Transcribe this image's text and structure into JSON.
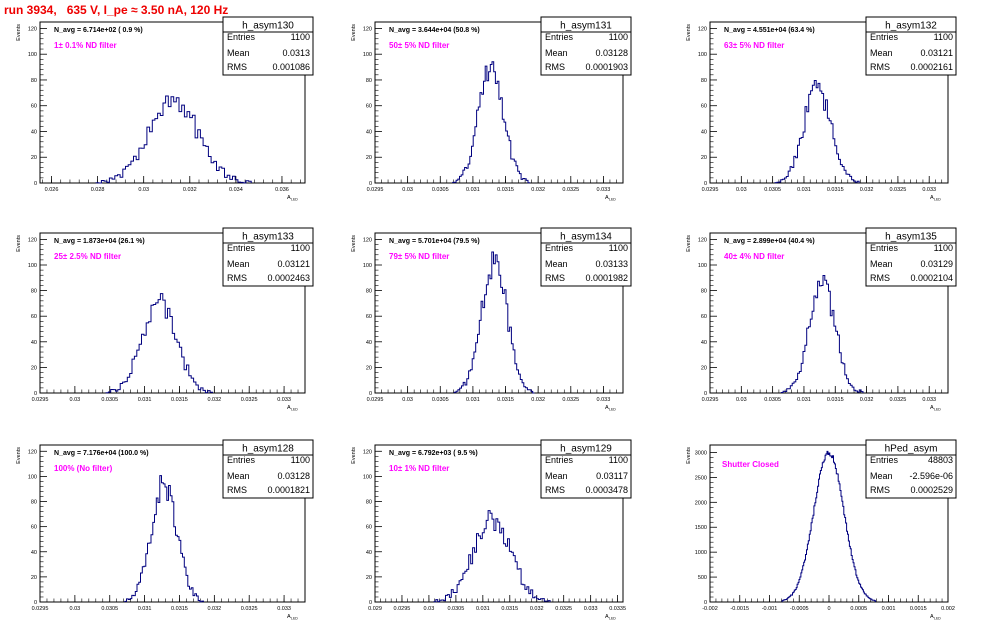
{
  "run_title": "run 3934,   635 V, I_pe ≈ 3.50 nA, 120 Hz",
  "colors": {
    "title": "#ee0000",
    "histogram": "#00007f",
    "annotation": "#ff00ff",
    "axis": "#000000"
  },
  "stats_labels": {
    "entries": "Entries",
    "mean": "Mean",
    "rms": "RMS"
  },
  "axis_y_label": "Events",
  "axis_x_label": "A",
  "axis_x_label_sub": "LED",
  "chart_data": [
    {
      "type": "histogram",
      "name": "h_asym130",
      "navg": "N_avg = 6.714e+02 ( 0.9 %)",
      "filter": "1± 0.1% ND filter",
      "stats": {
        "entries": "1100",
        "mean": "0.0313",
        "rms": "0.001086"
      },
      "xlim": [
        0.0255,
        0.037
      ],
      "xticks": [
        0.026,
        0.028,
        0.03,
        0.032,
        0.034,
        0.036
      ],
      "xtick_labels": [
        "0.026",
        "0.028",
        "0.03",
        "0.032",
        "0.034",
        "0.036"
      ],
      "ylim": [
        0,
        125
      ],
      "yticks": [
        0,
        20,
        40,
        60,
        80,
        100,
        120
      ],
      "ytick_labels": [
        "0",
        "20",
        "40",
        "60",
        "80",
        "100",
        "120"
      ],
      "mean": 0.0313,
      "rms": 0.001086,
      "peak": 63,
      "bins": 58,
      "seed": 130
    },
    {
      "type": "histogram",
      "name": "h_asym131",
      "navg": "N_avg = 3.644e+04 (50.8 %)",
      "filter": "50± 5% ND filter",
      "stats": {
        "entries": "1100",
        "mean": "0.03128",
        "rms": "0.0001903"
      },
      "xlim": [
        0.0295,
        0.0333
      ],
      "xticks": [
        0.0295,
        0.03,
        0.0305,
        0.031,
        0.0315,
        0.032,
        0.0325,
        0.033
      ],
      "xtick_labels": [
        "0.0295",
        "0.03",
        "0.0305",
        "0.031",
        "0.0315",
        "0.032",
        "0.0325",
        "0.033"
      ],
      "ylim": [
        0,
        125
      ],
      "yticks": [
        0,
        20,
        40,
        60,
        80,
        100,
        120
      ],
      "ytick_labels": [
        "0",
        "20",
        "40",
        "60",
        "80",
        "100",
        "120"
      ],
      "mean": 0.03128,
      "rms": 0.0001903,
      "peak": 92,
      "bins": 45,
      "seed": 131
    },
    {
      "type": "histogram",
      "name": "h_asym132",
      "navg": "N_avg = 4.551e+04 (63.4 %)",
      "filter": "63± 5% ND filter",
      "stats": {
        "entries": "1100",
        "mean": "0.03121",
        "rms": "0.0002161"
      },
      "xlim": [
        0.0295,
        0.0333
      ],
      "xticks": [
        0.0295,
        0.03,
        0.0305,
        0.031,
        0.0315,
        0.032,
        0.0325,
        0.033
      ],
      "xtick_labels": [
        "0.0295",
        "0.03",
        "0.0305",
        "0.031",
        "0.0315",
        "0.032",
        "0.0325",
        "0.033"
      ],
      "ylim": [
        0,
        125
      ],
      "yticks": [
        0,
        20,
        40,
        60,
        80,
        100,
        120
      ],
      "ytick_labels": [
        "0",
        "20",
        "40",
        "60",
        "80",
        "100",
        "120"
      ],
      "mean": 0.03121,
      "rms": 0.0002161,
      "peak": 74,
      "bins": 45,
      "seed": 132
    },
    {
      "type": "histogram",
      "name": "h_asym133",
      "navg": "N_avg = 1.873e+04 (26.1 %)",
      "filter": "25± 2.5% ND filter",
      "stats": {
        "entries": "1100",
        "mean": "0.03121",
        "rms": "0.0002463"
      },
      "xlim": [
        0.0295,
        0.0333
      ],
      "xticks": [
        0.0295,
        0.03,
        0.0305,
        0.031,
        0.0315,
        0.032,
        0.0325,
        0.033
      ],
      "xtick_labels": [
        "0.0295",
        "0.03",
        "0.0305",
        "0.031",
        "0.0315",
        "0.032",
        "0.0325",
        "0.033"
      ],
      "ylim": [
        0,
        125
      ],
      "yticks": [
        0,
        20,
        40,
        60,
        80,
        100,
        120
      ],
      "ytick_labels": [
        "0",
        "20",
        "40",
        "60",
        "80",
        "100",
        "120"
      ],
      "mean": 0.03121,
      "rms": 0.0002463,
      "peak": 73,
      "bins": 45,
      "seed": 133
    },
    {
      "type": "histogram",
      "name": "h_asym134",
      "navg": "N_avg = 5.701e+04 (79.5 %)",
      "filter": "79± 5% ND filter",
      "stats": {
        "entries": "1100",
        "mean": "0.03133",
        "rms": "0.0001982"
      },
      "xlim": [
        0.0295,
        0.0333
      ],
      "xticks": [
        0.0295,
        0.03,
        0.0305,
        0.031,
        0.0315,
        0.032,
        0.0325,
        0.033
      ],
      "xtick_labels": [
        "0.0295",
        "0.03",
        "0.0305",
        "0.031",
        "0.0315",
        "0.032",
        "0.0325",
        "0.033"
      ],
      "ylim": [
        0,
        125
      ],
      "yticks": [
        0,
        20,
        40,
        60,
        80,
        100,
        120
      ],
      "ytick_labels": [
        "0",
        "20",
        "40",
        "60",
        "80",
        "100",
        "120"
      ],
      "mean": 0.03133,
      "rms": 0.0001982,
      "peak": 101,
      "bins": 45,
      "seed": 134
    },
    {
      "type": "histogram",
      "name": "h_asym135",
      "navg": "N_avg = 2.899e+04 (40.4 %)",
      "filter": "40± 4% ND filter",
      "stats": {
        "entries": "1100",
        "mean": "0.03129",
        "rms": "0.0002104"
      },
      "xlim": [
        0.0295,
        0.0333
      ],
      "xticks": [
        0.0295,
        0.03,
        0.0305,
        0.031,
        0.0315,
        0.032,
        0.0325,
        0.033
      ],
      "xtick_labels": [
        "0.0295",
        "0.03",
        "0.0305",
        "0.031",
        "0.0315",
        "0.032",
        "0.0325",
        "0.033"
      ],
      "ylim": [
        0,
        125
      ],
      "yticks": [
        0,
        20,
        40,
        60,
        80,
        100,
        120
      ],
      "ytick_labels": [
        "0",
        "20",
        "40",
        "60",
        "80",
        "100",
        "120"
      ],
      "mean": 0.03129,
      "rms": 0.0002104,
      "peak": 84,
      "bins": 45,
      "seed": 135
    },
    {
      "type": "histogram",
      "name": "h_asym128",
      "navg": "N_avg = 7.176e+04 (100.0 %)",
      "filter": "100% (No filter)",
      "stats": {
        "entries": "1100",
        "mean": "0.03128",
        "rms": "0.0001821"
      },
      "xlim": [
        0.0295,
        0.0333
      ],
      "xticks": [
        0.0295,
        0.03,
        0.0305,
        0.031,
        0.0315,
        0.032,
        0.0325,
        0.033
      ],
      "xtick_labels": [
        "0.0295",
        "0.03",
        "0.0305",
        "0.031",
        "0.0315",
        "0.032",
        "0.0325",
        "0.033"
      ],
      "ylim": [
        0,
        125
      ],
      "yticks": [
        0,
        20,
        40,
        60,
        80,
        100,
        120
      ],
      "ytick_labels": [
        "0",
        "20",
        "40",
        "60",
        "80",
        "100",
        "120"
      ],
      "mean": 0.03128,
      "rms": 0.0001821,
      "peak": 94,
      "bins": 45,
      "seed": 128
    },
    {
      "type": "histogram",
      "name": "h_asym129",
      "navg": "N_avg = 6.792e+03 ( 9.5 %)",
      "filter": "10± 1% ND filter",
      "stats": {
        "entries": "1100",
        "mean": "0.03117",
        "rms": "0.0003478"
      },
      "xlim": [
        0.029,
        0.0336
      ],
      "xticks": [
        0.029,
        0.0295,
        0.03,
        0.0305,
        0.031,
        0.0315,
        0.032,
        0.0325,
        0.033,
        0.0335
      ],
      "xtick_labels": [
        "0.029",
        "0.0295",
        "0.03",
        "0.0305",
        "0.031",
        "0.0315",
        "0.032",
        "0.0325",
        "0.033",
        "0.0335"
      ],
      "ylim": [
        0,
        125
      ],
      "yticks": [
        0,
        20,
        40,
        60,
        80,
        100,
        120
      ],
      "ytick_labels": [
        "0",
        "20",
        "40",
        "60",
        "80",
        "100",
        "120"
      ],
      "mean": 0.03117,
      "rms": 0.0003478,
      "peak": 66,
      "bins": 60,
      "seed": 129
    },
    {
      "type": "histogram",
      "name": "hPed_asym",
      "navg": "",
      "filter": "Shutter Closed",
      "stats": {
        "entries": "48803",
        "mean": "-2.596e-06",
        "rms": "0.0002529"
      },
      "xlim": [
        -0.002,
        0.002
      ],
      "xticks": [
        -0.002,
        -0.0015,
        -0.001,
        -0.0005,
        0,
        0.0005,
        0.001,
        0.0015,
        0.002
      ],
      "xtick_labels": [
        "-0.002",
        "-0.0015",
        "-0.001",
        "-0.0005",
        "0",
        "0.0005",
        "0.001",
        "0.0015",
        "0.002"
      ],
      "ylim": [
        0,
        3150
      ],
      "yticks": [
        0,
        500,
        1000,
        1500,
        2000,
        2500,
        3000
      ],
      "ytick_labels": [
        "0",
        "500",
        "1000",
        "1500",
        "2000",
        "2500",
        "3000"
      ],
      "mean": -2.6e-06,
      "rms": 0.0002529,
      "peak": 2990,
      "bins": 100,
      "seed": 999
    }
  ]
}
